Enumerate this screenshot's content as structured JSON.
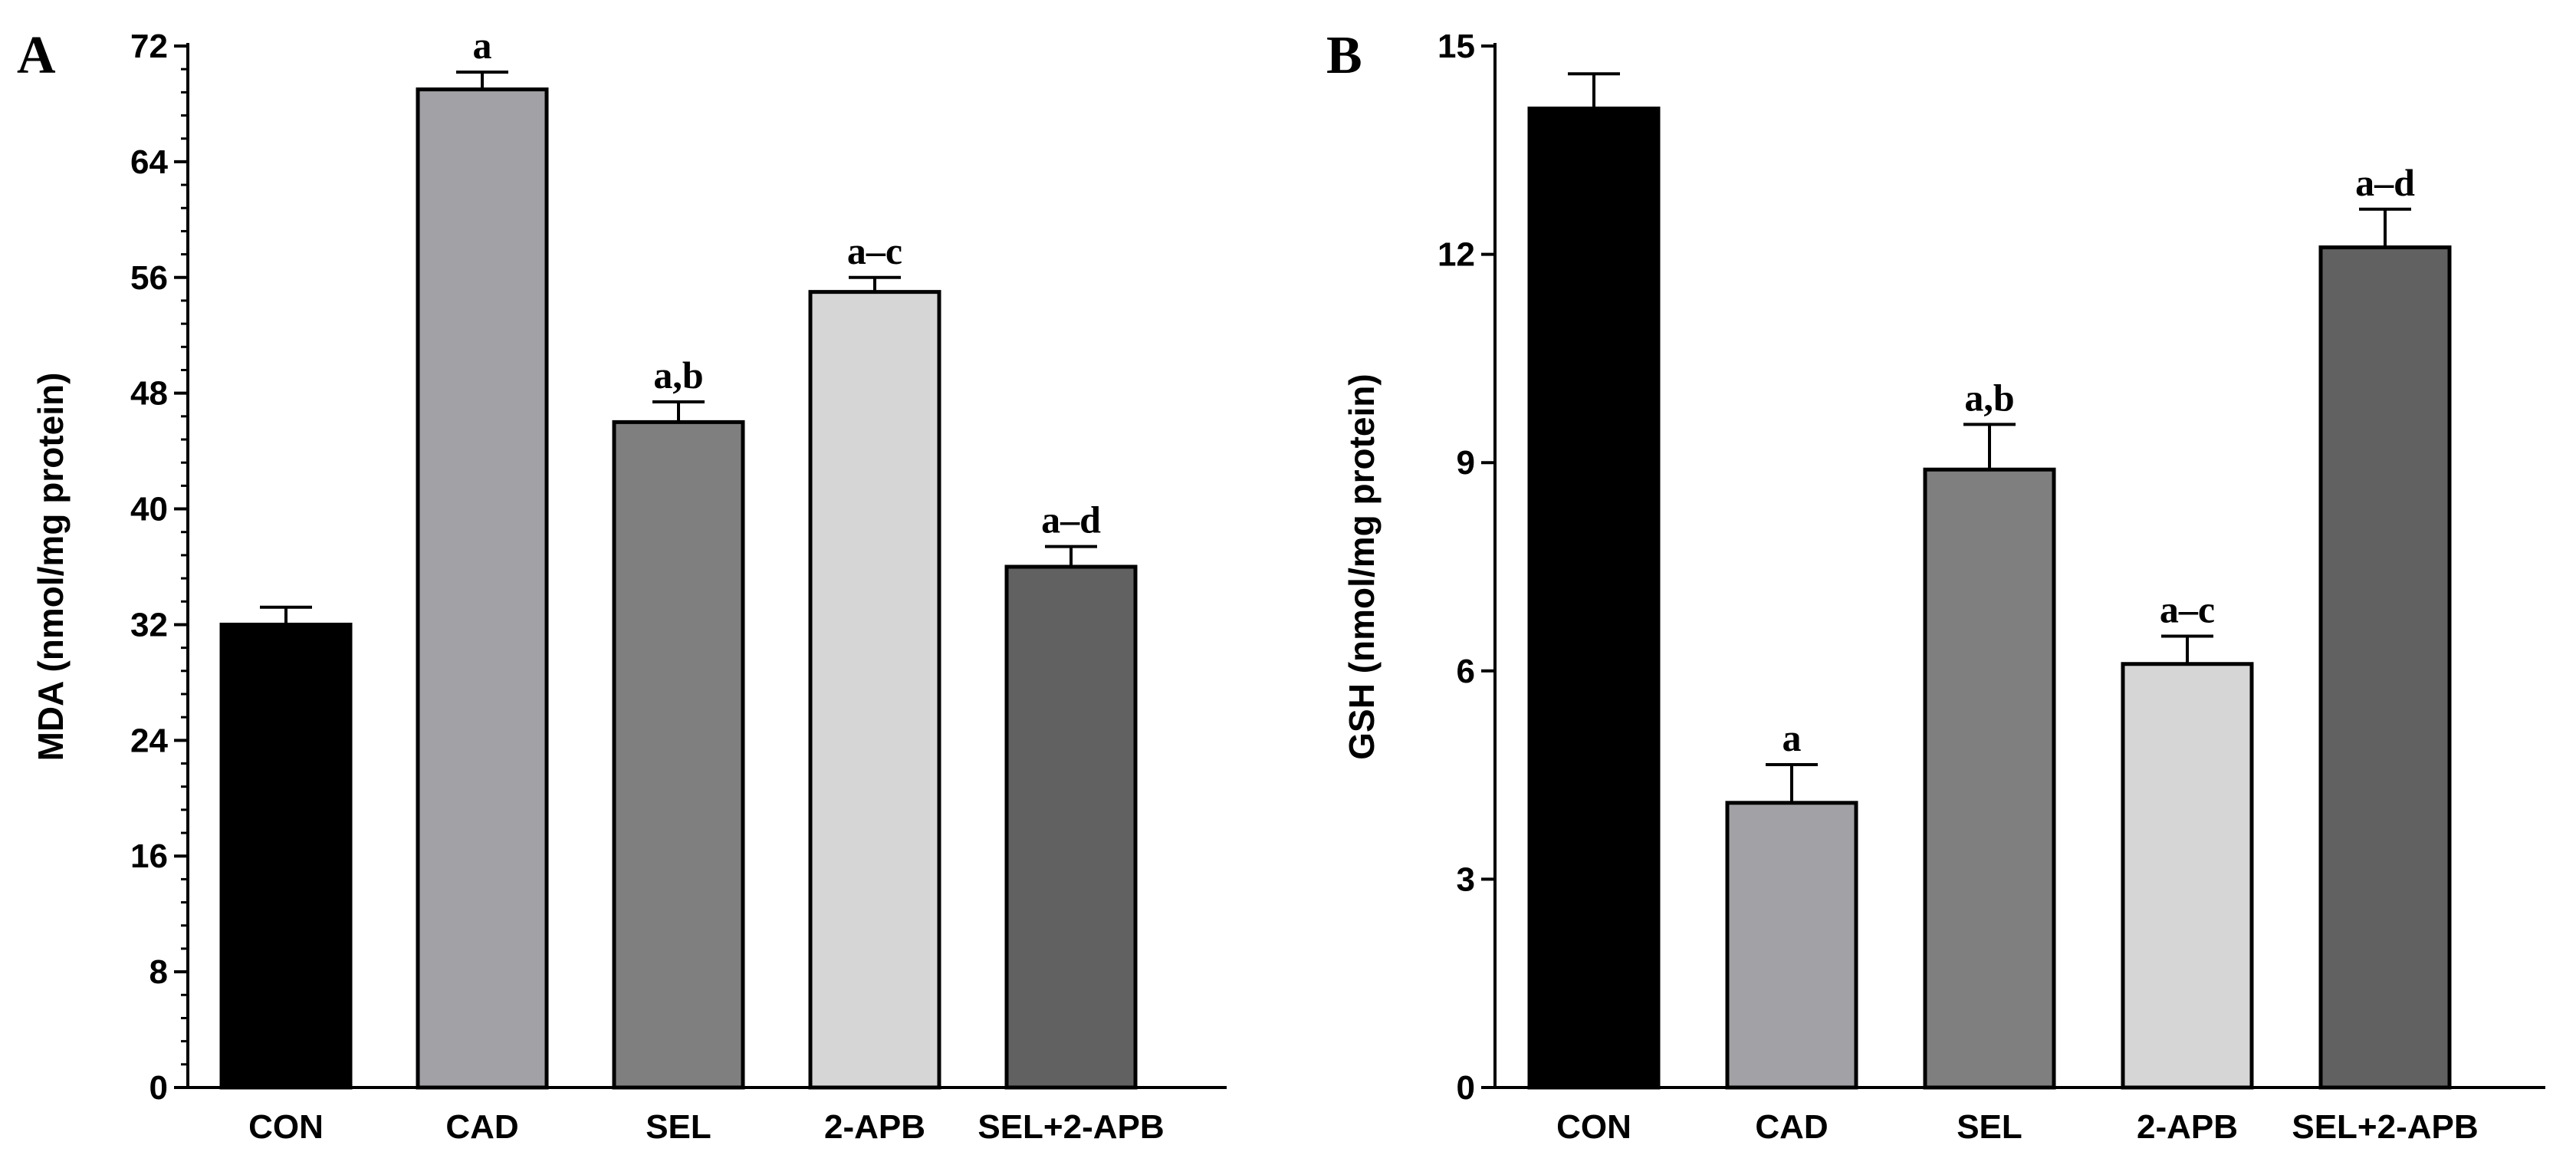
{
  "chart_data": [
    {
      "panel": "A",
      "type": "bar",
      "ylabel": "MDA (nmol/mg protein)",
      "xlabel": "",
      "ylim": [
        0,
        72
      ],
      "yticks": [
        0,
        8,
        16,
        24,
        32,
        40,
        48,
        56,
        64,
        72
      ],
      "minor_ticks_per_major": 4,
      "categories": [
        "CON",
        "CAD",
        "SEL",
        "2-APB",
        "SEL+2-APB"
      ],
      "values": [
        32,
        69,
        46,
        55,
        36
      ],
      "errors": [
        1.2,
        1.2,
        1.4,
        1.0,
        1.4
      ],
      "significance": [
        "",
        "a",
        "a,b",
        "a–c",
        "a–d"
      ],
      "colors": [
        "#000000",
        "#a2a2a6",
        "#7f7f7f",
        "#d6d6d6",
        "#616161"
      ]
    },
    {
      "panel": "B",
      "type": "bar",
      "ylabel": "GSH (nmol/mg protein)",
      "xlabel": "",
      "ylim": [
        0,
        15
      ],
      "yticks": [
        0,
        3,
        6,
        9,
        12,
        15
      ],
      "minor_ticks_per_major": 0,
      "categories": [
        "CON",
        "CAD",
        "SEL",
        "2-APB",
        "SEL+2-APB"
      ],
      "values": [
        14.1,
        4.1,
        8.9,
        6.1,
        12.1
      ],
      "errors": [
        0.5,
        0.55,
        0.65,
        0.4,
        0.55
      ],
      "significance": [
        "",
        "a",
        "a,b",
        "a–c",
        "a–d"
      ],
      "colors": [
        "#000000",
        "#a2a2a6",
        "#7f7f7f",
        "#d6d6d6",
        "#616161"
      ]
    }
  ]
}
